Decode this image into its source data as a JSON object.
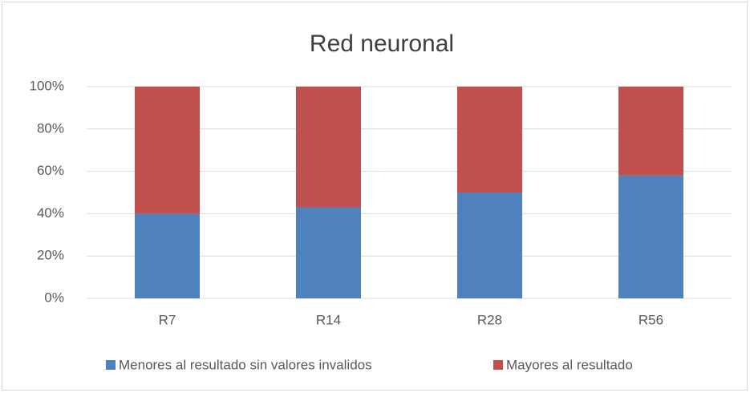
{
  "chart_data": {
    "type": "stacked_bar",
    "title": "Red neuronal",
    "categories": [
      "R7",
      "R14",
      "R28",
      "R56"
    ],
    "series": [
      {
        "name": "Menores al resultado sin valores invalidos",
        "color": "#4f81bd",
        "values": [
          40,
          43,
          50,
          58
        ]
      },
      {
        "name": "Mayores al resultado",
        "color": "#c0504d",
        "values": [
          60,
          57,
          50,
          42
        ]
      }
    ],
    "ylim": [
      0,
      100
    ],
    "yticks": [
      {
        "value": 0,
        "label": "0%"
      },
      {
        "value": 20,
        "label": "20%"
      },
      {
        "value": 40,
        "label": "40%"
      },
      {
        "value": 60,
        "label": "60%"
      },
      {
        "value": 80,
        "label": "80%"
      },
      {
        "value": 100,
        "label": "100%"
      }
    ],
    "grid": true,
    "legend": "bottom"
  }
}
